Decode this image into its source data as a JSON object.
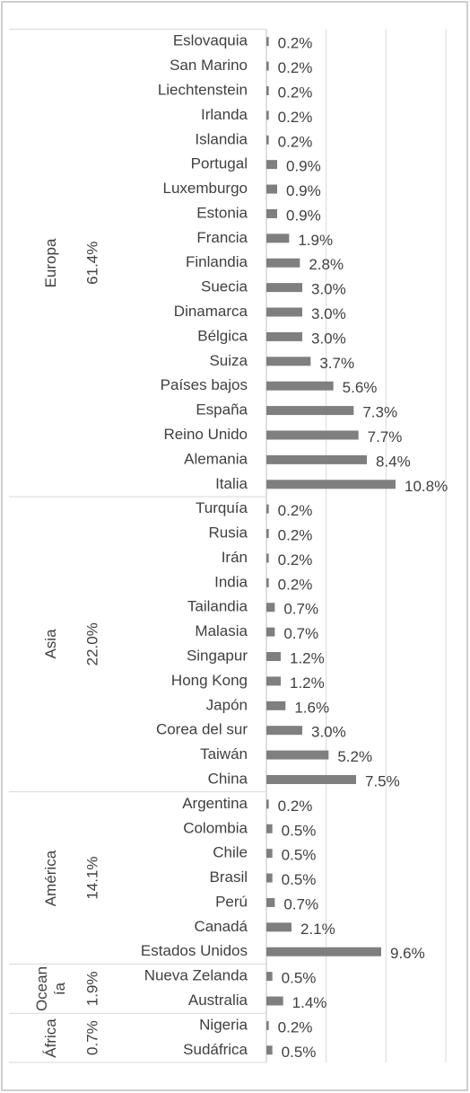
{
  "chart_data": {
    "type": "bar",
    "orientation": "horizontal",
    "color": "#7f7f7f",
    "xlim": [
      0,
      15
    ],
    "xticks": [
      0,
      5,
      10,
      15
    ],
    "grid": true,
    "groups": [
      {
        "name": "Europa",
        "value": 61.4,
        "value_label": "61.4%",
        "categories": [
          "Eslovaquia",
          "San Marino",
          "Liechtenstein",
          "Irlanda",
          "Islandia",
          "Portugal",
          "Luxemburgo",
          "Estonia",
          "Francia",
          "Finlandia",
          "Suecia",
          "Dinamarca",
          "Bélgica",
          "Suiza",
          "Países bajos",
          "España",
          "Reino Unido",
          "Alemania",
          "Italia"
        ],
        "values": [
          0.2,
          0.2,
          0.2,
          0.2,
          0.2,
          0.9,
          0.9,
          0.9,
          1.9,
          2.8,
          3.0,
          3.0,
          3.0,
          3.7,
          5.6,
          7.3,
          7.7,
          8.4,
          10.8
        ],
        "value_labels": [
          "0.2%",
          "0.2%",
          "0.2%",
          "0.2%",
          "0.2%",
          "0.9%",
          "0.9%",
          "0.9%",
          "1.9%",
          "2.8%",
          "3.0%",
          "3.0%",
          "3.0%",
          "3.7%",
          "5.6%",
          "7.3%",
          "7.7%",
          "8.4%",
          "10.8%"
        ]
      },
      {
        "name": "Asia",
        "value": 22.0,
        "value_label": "22.0%",
        "categories": [
          "Turquía",
          "Rusia",
          "Irán",
          "India",
          "Tailandia",
          "Malasia",
          "Singapur",
          "Hong Kong",
          "Japón",
          "Corea del sur",
          "Taiwán",
          "China"
        ],
        "values": [
          0.2,
          0.2,
          0.2,
          0.2,
          0.7,
          0.7,
          1.2,
          1.2,
          1.6,
          3.0,
          5.2,
          7.5
        ],
        "value_labels": [
          "0.2%",
          "0.2%",
          "0.2%",
          "0.2%",
          "0.7%",
          "0.7%",
          "1.2%",
          "1.2%",
          "1.6%",
          "3.0%",
          "5.2%",
          "7.5%"
        ]
      },
      {
        "name": "América",
        "value": 14.1,
        "value_label": "14.1%",
        "categories": [
          "Argentina",
          "Colombia",
          "Chile",
          "Brasil",
          "Perú",
          "Canadá",
          "Estados Unidos"
        ],
        "values": [
          0.2,
          0.5,
          0.5,
          0.5,
          0.7,
          2.1,
          9.6
        ],
        "value_labels": [
          "0.2%",
          "0.5%",
          "0.5%",
          "0.5%",
          "0.7%",
          "2.1%",
          "9.6%"
        ]
      },
      {
        "name": "Oceanía",
        "value": 1.9,
        "value_label": "1.9%",
        "categories": [
          "Nueva Zelanda",
          "Australia"
        ],
        "values": [
          0.5,
          1.4
        ],
        "value_labels": [
          "0.5%",
          "1.4%"
        ]
      },
      {
        "name": "África",
        "value": 0.7,
        "value_label": "0.7%",
        "categories": [
          "Nigeria",
          "Sudáfrica"
        ],
        "values": [
          0.2,
          0.5
        ],
        "value_labels": [
          "0.2%",
          "0.5%"
        ]
      }
    ]
  }
}
